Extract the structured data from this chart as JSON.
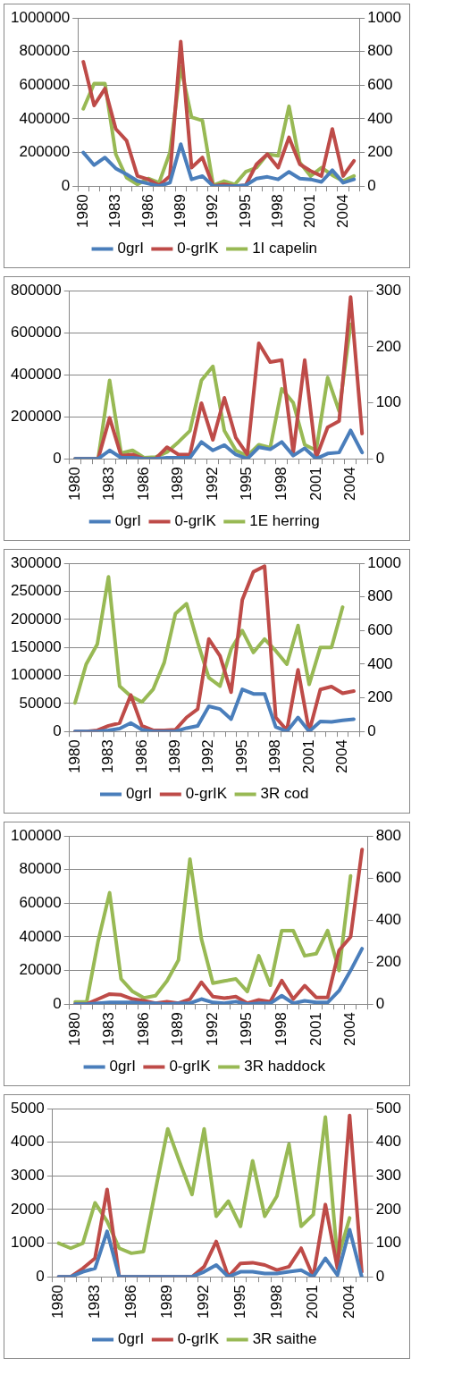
{
  "chart_data": [
    {
      "type": "line",
      "categories": [
        "1980",
        null,
        null,
        "1983",
        null,
        null,
        "1986",
        null,
        null,
        "1989",
        null,
        null,
        "1992",
        null,
        null,
        "1995",
        null,
        null,
        "1998",
        null,
        null,
        "2001",
        null,
        null,
        "2004",
        null
      ],
      "series": [
        {
          "name": "0grI",
          "color": "#4a7ebb",
          "values": [
            200000,
            125000,
            170000,
            105000,
            70000,
            30000,
            15000,
            0,
            20000,
            250000,
            40000,
            60000,
            0,
            0,
            0,
            5000,
            45000,
            55000,
            40000,
            85000,
            45000,
            40000,
            25000,
            95000,
            20000,
            40000
          ]
        },
        {
          "name": "0-grIK",
          "color": "#be4b48",
          "values": [
            740000,
            480000,
            580000,
            340000,
            270000,
            60000,
            40000,
            5000,
            60000,
            860000,
            110000,
            170000,
            0,
            10000,
            0,
            5000,
            130000,
            190000,
            110000,
            290000,
            130000,
            90000,
            60000,
            340000,
            60000,
            150000
          ]
        },
        {
          "name": "1I capelin",
          "color": "#98b954",
          "axis": "y2",
          "values": [
            460,
            610,
            610,
            190,
            50,
            10,
            45,
            20,
            200,
            710,
            410,
            390,
            5,
            30,
            10,
            85,
            110,
            190,
            180,
            475,
            140,
            60,
            110,
            65,
            30,
            60
          ]
        }
      ],
      "ylim": [
        0,
        1000000
      ],
      "yticks": [
        0,
        200000,
        400000,
        600000,
        800000,
        1000000
      ],
      "y2lim": [
        0,
        1000
      ],
      "y2ticks": [
        0,
        200,
        400,
        600,
        800,
        1000
      ],
      "grid": "y",
      "legend": "bottom"
    },
    {
      "type": "line",
      "categories": [
        "1980",
        null,
        null,
        "1983",
        null,
        null,
        "1986",
        null,
        null,
        "1989",
        null,
        null,
        "1992",
        null,
        null,
        "1995",
        null,
        null,
        "1998",
        null,
        null,
        "2001",
        null,
        null,
        "2004",
        null
      ],
      "series": [
        {
          "name": "0grI",
          "color": "#4a7ebb",
          "values": [
            0,
            0,
            0,
            40000,
            5000,
            5000,
            0,
            0,
            5000,
            5000,
            5000,
            80000,
            40000,
            65000,
            20000,
            0,
            55000,
            45000,
            80000,
            15000,
            50000,
            0,
            25000,
            30000,
            135000,
            30000
          ]
        },
        {
          "name": "0-grIK",
          "color": "#be4b48",
          "values": [
            0,
            0,
            0,
            195000,
            15000,
            20000,
            0,
            0,
            55000,
            20000,
            20000,
            265000,
            90000,
            290000,
            100000,
            20000,
            550000,
            460000,
            470000,
            30000,
            470000,
            5000,
            150000,
            180000,
            770000,
            120000
          ]
        },
        {
          "name": "1E herring",
          "color": "#98b954",
          "axis": "y2",
          "values": [
            0,
            0,
            0,
            140,
            10,
            15,
            2,
            3,
            12,
            30,
            50,
            140,
            165,
            50,
            15,
            5,
            25,
            20,
            125,
            100,
            25,
            15,
            145,
            85,
            240,
            null
          ]
        }
      ],
      "ylim": [
        0,
        800000
      ],
      "yticks": [
        0,
        200000,
        400000,
        600000,
        800000
      ],
      "y2lim": [
        0,
        300
      ],
      "y2ticks": [
        0,
        100,
        200,
        300
      ],
      "grid": "y",
      "legend": "bottom"
    },
    {
      "type": "line",
      "categories": [
        "1980",
        null,
        null,
        "1983",
        null,
        null,
        "1986",
        null,
        null,
        "1989",
        null,
        null,
        "1992",
        null,
        null,
        "1995",
        null,
        null,
        "1998",
        null,
        null,
        "2001",
        null,
        null,
        "2004",
        null
      ],
      "series": [
        {
          "name": "0grI",
          "color": "#4a7ebb",
          "values": [
            0,
            0,
            0,
            2000,
            5000,
            15000,
            3000,
            0,
            0,
            0,
            6000,
            10000,
            45000,
            40000,
            22000,
            75000,
            67000,
            67000,
            8000,
            0,
            25000,
            0,
            18000,
            17000,
            20000,
            22000
          ]
        },
        {
          "name": "0-grIK",
          "color": "#be4b48",
          "values": [
            0,
            0,
            2000,
            10000,
            15000,
            65000,
            10000,
            2000,
            2000,
            3000,
            25000,
            40000,
            165000,
            135000,
            70000,
            235000,
            285000,
            295000,
            25000,
            2000,
            110000,
            0,
            75000,
            80000,
            68000,
            72000
          ]
        },
        {
          "name": "3R cod",
          "color": "#98b954",
          "axis": "y2",
          "values": [
            170,
            400,
            520,
            920,
            270,
            210,
            175,
            250,
            410,
            700,
            760,
            530,
            320,
            270,
            490,
            600,
            470,
            550,
            480,
            400,
            630,
            280,
            500,
            500,
            740,
            null
          ]
        }
      ],
      "ylim": [
        0,
        300000
      ],
      "yticks": [
        0,
        50000,
        100000,
        150000,
        200000,
        250000,
        300000
      ],
      "y2lim": [
        0,
        1000
      ],
      "y2ticks": [
        0,
        200,
        400,
        600,
        800,
        1000
      ],
      "grid": "y",
      "legend": "bottom"
    },
    {
      "type": "line",
      "categories": [
        "1980",
        null,
        null,
        "1983",
        null,
        null,
        "1986",
        null,
        null,
        "1989",
        null,
        null,
        "1992",
        null,
        null,
        "1995",
        null,
        null,
        "1998",
        null,
        null,
        "2001",
        null,
        null,
        "2004",
        null
      ],
      "series": [
        {
          "name": "0grI",
          "color": "#4a7ebb",
          "values": [
            0,
            0,
            500,
            1000,
            1000,
            1000,
            500,
            500,
            0,
            500,
            500,
            3000,
            1000,
            500,
            1500,
            0,
            500,
            500,
            5000,
            500,
            2000,
            1000,
            1000,
            8000,
            20000,
            33000
          ]
        },
        {
          "name": "0-grIK",
          "color": "#be4b48",
          "values": [
            0,
            0,
            3000,
            6000,
            5500,
            3000,
            2000,
            500,
            1500,
            500,
            3000,
            13000,
            4500,
            3500,
            4500,
            500,
            2500,
            1500,
            14000,
            3000,
            11000,
            4000,
            4000,
            32000,
            40000,
            92000
          ]
        },
        {
          "name": "3R haddock",
          "color": "#98b954",
          "axis": "y2",
          "values": [
            10,
            10,
            300,
            530,
            120,
            60,
            30,
            40,
            110,
            210,
            690,
            310,
            100,
            110,
            120,
            60,
            230,
            90,
            350,
            350,
            230,
            240,
            350,
            160,
            610,
            null
          ]
        }
      ],
      "ylim": [
        0,
        100000
      ],
      "yticks": [
        0,
        20000,
        40000,
        60000,
        80000,
        100000
      ],
      "y2lim": [
        0,
        800
      ],
      "y2ticks": [
        0,
        200,
        400,
        600,
        800
      ],
      "grid": "y",
      "legend": "bottom"
    },
    {
      "type": "line",
      "categories": [
        "1980",
        null,
        null,
        "1983",
        null,
        null,
        "1986",
        null,
        null,
        "1989",
        null,
        null,
        "1992",
        null,
        null,
        "1995",
        null,
        null,
        "1998",
        null,
        null,
        "2001",
        null,
        null,
        "2004",
        null
      ],
      "series": [
        {
          "name": "0grI",
          "color": "#4a7ebb",
          "values": [
            0,
            0,
            150,
            250,
            1350,
            0,
            0,
            0,
            0,
            0,
            0,
            0,
            150,
            350,
            0,
            150,
            150,
            100,
            100,
            150,
            200,
            0,
            550,
            50,
            1400,
            0
          ]
        },
        {
          "name": "0-grIK",
          "color": "#be4b48",
          "values": [
            0,
            0,
            250,
            550,
            2600,
            0,
            0,
            0,
            0,
            0,
            0,
            0,
            300,
            1050,
            0,
            400,
            420,
            350,
            200,
            300,
            850,
            0,
            2150,
            250,
            4800,
            150
          ]
        },
        {
          "name": "3R saithe",
          "color": "#98b954",
          "axis": "y2",
          "values": [
            100,
            85,
            100,
            220,
            165,
            85,
            70,
            75,
            260,
            440,
            340,
            245,
            440,
            180,
            225,
            150,
            345,
            180,
            240,
            395,
            150,
            185,
            475,
            50,
            175,
            null
          ]
        }
      ],
      "ylim": [
        0,
        5000
      ],
      "yticks": [
        0,
        1000,
        2000,
        3000,
        4000,
        5000
      ],
      "y2lim": [
        0,
        500
      ],
      "y2ticks": [
        0,
        100,
        200,
        300,
        400,
        500
      ],
      "grid": "y",
      "legend": "bottom"
    }
  ]
}
